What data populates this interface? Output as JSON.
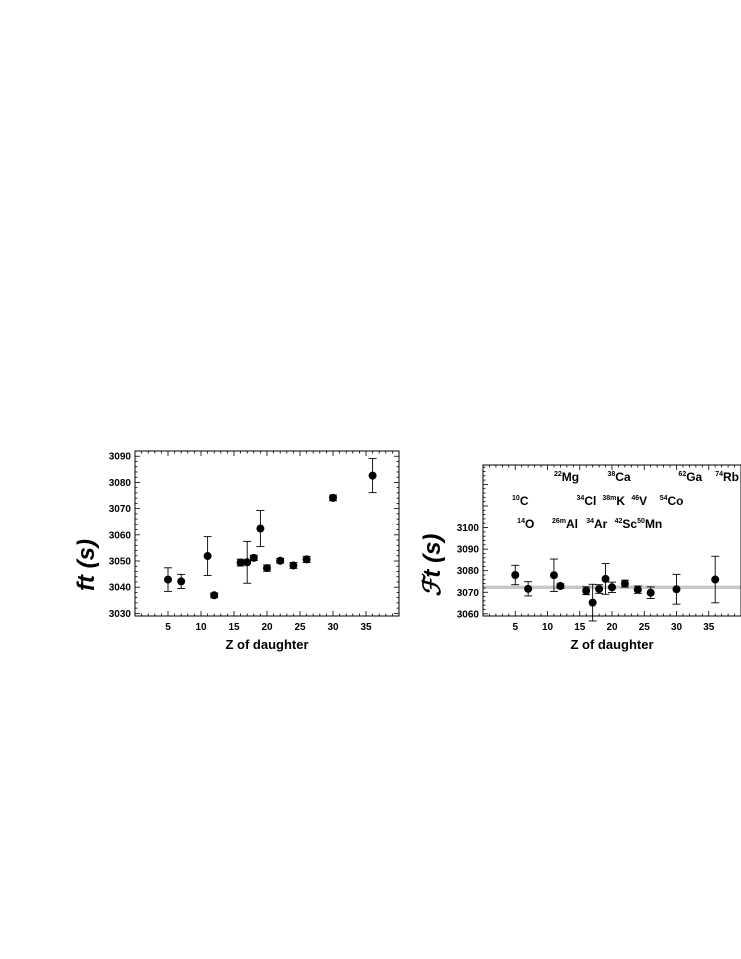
{
  "chart_data": [
    {
      "type": "scatter",
      "xlabel": "Z of daughter",
      "ylabel": "ft (s)",
      "xlim": [
        0,
        40
      ],
      "ylim": [
        3029,
        3092
      ],
      "xticks": [
        5,
        10,
        15,
        20,
        25,
        30,
        35
      ],
      "yticks": [
        3030,
        3040,
        3050,
        3060,
        3070,
        3080,
        3090
      ],
      "points": [
        {
          "x": 5,
          "y": 3042.9,
          "err": 4.5
        },
        {
          "x": 7,
          "y": 3042.2,
          "err": 2.7
        },
        {
          "x": 11,
          "y": 3051.9,
          "err": 7.4
        },
        {
          "x": 12,
          "y": 3036.9,
          "err": 0.9
        },
        {
          "x": 16,
          "y": 3049.4,
          "err": 1.3
        },
        {
          "x": 17,
          "y": 3049.5,
          "err": 8.0
        },
        {
          "x": 18,
          "y": 3051.2,
          "err": 1.0
        },
        {
          "x": 19,
          "y": 3062.4,
          "err": 6.9
        },
        {
          "x": 20,
          "y": 3047.3,
          "err": 1.2
        },
        {
          "x": 22,
          "y": 3050.1,
          "err": 0.9
        },
        {
          "x": 24,
          "y": 3048.3,
          "err": 1.1
        },
        {
          "x": 26,
          "y": 3050.6,
          "err": 1.2
        },
        {
          "x": 30,
          "y": 3074.1,
          "err": 1.1
        },
        {
          "x": 36,
          "y": 3082.6,
          "err": 6.5
        }
      ]
    },
    {
      "type": "scatter",
      "xlabel": "Z of daughter",
      "ylabel": "t (s)",
      "ylabel_script": "ℱ",
      "xlim": [
        0,
        40
      ],
      "ylim": [
        3059,
        3129
      ],
      "xticks": [
        5,
        10,
        15,
        20,
        25,
        30,
        35
      ],
      "yticks": [
        3060,
        3070,
        3080,
        3090,
        3100
      ],
      "band": {
        "y": 3072.3,
        "halfwidth": 0.8
      },
      "points": [
        {
          "x": 5,
          "y": 3078.0,
          "err": 4.5
        },
        {
          "x": 7,
          "y": 3071.6,
          "err": 3.3
        },
        {
          "x": 11,
          "y": 3077.9,
          "err": 7.5
        },
        {
          "x": 12,
          "y": 3072.9,
          "err": 1.0
        },
        {
          "x": 16,
          "y": 3070.7,
          "err": 1.8
        },
        {
          "x": 17,
          "y": 3065.2,
          "err": 8.5
        },
        {
          "x": 18,
          "y": 3071.5,
          "err": 2.0
        },
        {
          "x": 19,
          "y": 3076.2,
          "err": 7.1
        },
        {
          "x": 20,
          "y": 3072.3,
          "err": 2.4
        },
        {
          "x": 22,
          "y": 3074.0,
          "err": 1.6
        },
        {
          "x": 24,
          "y": 3071.2,
          "err": 1.7
        },
        {
          "x": 26,
          "y": 3069.8,
          "err": 2.7
        },
        {
          "x": 30,
          "y": 3071.4,
          "err": 6.9
        },
        {
          "x": 36,
          "y": 3075.9,
          "err": 10.8
        }
      ],
      "annotations": [
        {
          "mass": "22",
          "sym": "Mg",
          "x": 11.0,
          "y": 3121.5
        },
        {
          "mass": "38",
          "sym": "Ca",
          "x": 19.3,
          "y": 3121.5
        },
        {
          "mass": "62",
          "sym": "Ga",
          "x": 30.3,
          "y": 3121.5
        },
        {
          "mass": "74",
          "sym": "Rb",
          "x": 36.0,
          "y": 3121.5
        },
        {
          "mass": "10",
          "sym": "C",
          "x": 4.5,
          "y": 3110.5
        },
        {
          "mass": "34",
          "sym": "Cl",
          "x": 14.5,
          "y": 3110.5
        },
        {
          "mass": "38m",
          "sym": "K",
          "x": 18.5,
          "y": 3110.5
        },
        {
          "mass": "46",
          "sym": "V",
          "x": 23.0,
          "y": 3110.5
        },
        {
          "mass": "54",
          "sym": "Co",
          "x": 27.4,
          "y": 3110.5
        },
        {
          "mass": "14",
          "sym": "O",
          "x": 5.3,
          "y": 3099.7
        },
        {
          "mass": "26m",
          "sym": "Al",
          "x": 10.7,
          "y": 3099.7
        },
        {
          "mass": "34",
          "sym": "Ar",
          "x": 16.0,
          "y": 3099.7
        },
        {
          "mass": "42",
          "sym": "Sc",
          "x": 20.4,
          "y": 3099.7
        },
        {
          "mass": "50",
          "sym": "Mn",
          "x": 23.9,
          "y": 3099.7
        }
      ]
    }
  ]
}
